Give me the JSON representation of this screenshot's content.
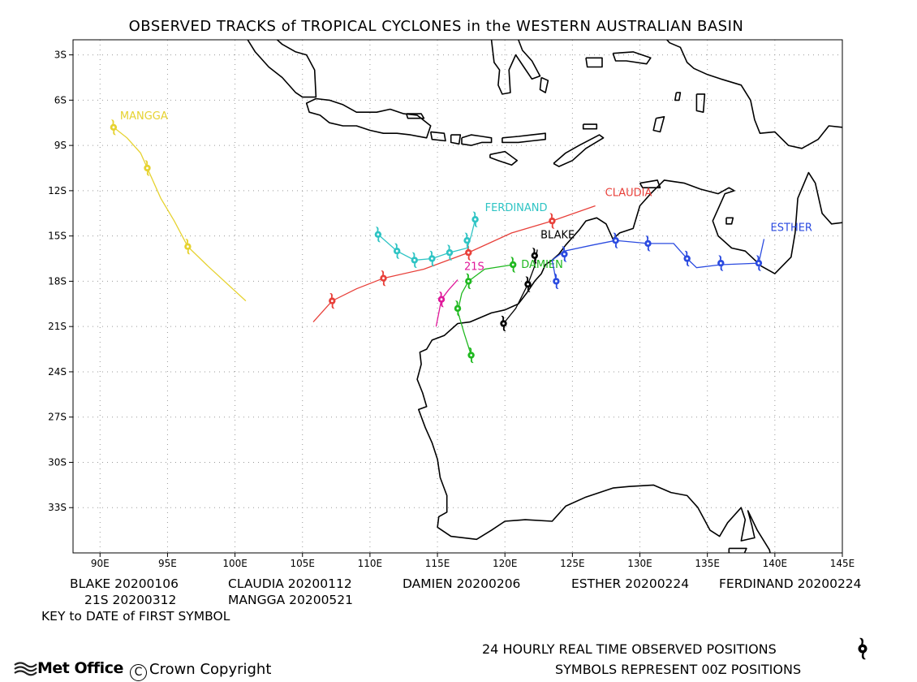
{
  "title": "OBSERVED TRACKS of TROPICAL CYCLONES in the WESTERN AUSTRALIAN BASIN",
  "map": {
    "lon_range": [
      88,
      145
    ],
    "lat_range": [
      -36,
      -2
    ],
    "x_ticks": [
      "90E",
      "95E",
      "100E",
      "105E",
      "110E",
      "115E",
      "120E",
      "125E",
      "130E",
      "135E",
      "140E",
      "145E"
    ],
    "y_ticks": [
      "3S",
      "6S",
      "9S",
      "12S",
      "15S",
      "18S",
      "21S",
      "24S",
      "27S",
      "30S",
      "33S"
    ],
    "grid": "dotted"
  },
  "tracks": [
    {
      "name": "MANGGA",
      "color": "#e6d230",
      "points": [
        [
          91.0,
          -7.8
        ],
        [
          92.0,
          -8.5
        ],
        [
          93.0,
          -9.5
        ],
        [
          93.5,
          -10.5
        ],
        [
          94.5,
          -12.5
        ],
        [
          95.5,
          -14.0
        ],
        [
          96.5,
          -15.7
        ],
        [
          98.0,
          -17.0
        ],
        [
          100.8,
          -19.3
        ]
      ],
      "symbols": [
        [
          91.0,
          -7.8
        ],
        [
          93.5,
          -10.5
        ],
        [
          96.5,
          -15.7
        ]
      ]
    },
    {
      "name": "CLAUDIA",
      "color": "#e8403a",
      "points": [
        [
          105.8,
          -20.7
        ],
        [
          107.2,
          -19.3
        ],
        [
          109.0,
          -18.5
        ],
        [
          111.0,
          -17.8
        ],
        [
          114.0,
          -17.2
        ],
        [
          117.3,
          -16.1
        ],
        [
          120.5,
          -14.8
        ],
        [
          123.5,
          -14.0
        ],
        [
          126.7,
          -13.0
        ]
      ],
      "symbols": [
        [
          107.2,
          -19.3
        ],
        [
          111.0,
          -17.8
        ],
        [
          117.3,
          -16.1
        ],
        [
          123.5,
          -14.0
        ]
      ]
    },
    {
      "name": "FERDINAND",
      "color": "#2ec4c4",
      "points": [
        [
          117.8,
          -13.9
        ],
        [
          117.5,
          -15.0
        ],
        [
          117.2,
          -15.8
        ],
        [
          115.9,
          -16.1
        ],
        [
          114.6,
          -16.5
        ],
        [
          113.3,
          -16.6
        ],
        [
          112.0,
          -16.0
        ],
        [
          110.6,
          -14.9
        ]
      ],
      "symbols": [
        [
          117.8,
          -13.9
        ],
        [
          117.2,
          -15.3
        ],
        [
          115.9,
          -16.1
        ],
        [
          114.6,
          -16.5
        ],
        [
          113.3,
          -16.6
        ],
        [
          112.0,
          -16.0
        ],
        [
          110.6,
          -14.9
        ]
      ]
    },
    {
      "name": "BLAKE",
      "color": "#000000",
      "points": [
        [
          122.4,
          -15.9
        ],
        [
          122.2,
          -17.0
        ],
        [
          121.7,
          -18.2
        ],
        [
          120.8,
          -19.8
        ],
        [
          119.9,
          -20.8
        ]
      ],
      "symbols": [
        [
          122.2,
          -16.3
        ],
        [
          121.7,
          -18.2
        ],
        [
          119.9,
          -20.8
        ]
      ]
    },
    {
      "name": "DAMIEN",
      "color": "#1fb81f",
      "points": [
        [
          120.6,
          -16.9
        ],
        [
          118.5,
          -17.2
        ],
        [
          117.3,
          -18.0
        ],
        [
          116.8,
          -18.8
        ],
        [
          116.5,
          -20.0
        ],
        [
          117.0,
          -21.5
        ],
        [
          117.5,
          -22.9
        ]
      ],
      "symbols": [
        [
          120.6,
          -16.9
        ],
        [
          117.3,
          -18.0
        ],
        [
          116.5,
          -19.8
        ],
        [
          117.5,
          -22.9
        ]
      ]
    },
    {
      "name": "21S",
      "color": "#e0189a",
      "points": [
        [
          116.5,
          -17.9
        ],
        [
          115.8,
          -18.6
        ],
        [
          115.3,
          -19.2
        ],
        [
          114.9,
          -21.0
        ]
      ],
      "symbols": [
        [
          115.3,
          -19.2
        ]
      ]
    },
    {
      "name": "ESTHER",
      "color": "#2b4be0",
      "points": [
        [
          139.2,
          -15.2
        ],
        [
          138.8,
          -16.8
        ],
        [
          136.0,
          -16.9
        ],
        [
          134.2,
          -17.1
        ],
        [
          133.5,
          -16.5
        ],
        [
          132.5,
          -15.5
        ],
        [
          130.6,
          -15.5
        ],
        [
          128.2,
          -15.3
        ],
        [
          126.5,
          -15.6
        ],
        [
          124.4,
          -16.0
        ],
        [
          123.5,
          -16.6
        ],
        [
          123.8,
          -18.0
        ]
      ],
      "symbols": [
        [
          138.8,
          -16.8
        ],
        [
          136.0,
          -16.8
        ],
        [
          133.5,
          -16.5
        ],
        [
          130.6,
          -15.5
        ],
        [
          128.2,
          -15.3
        ],
        [
          124.4,
          -16.2
        ],
        [
          123.8,
          -18.0
        ]
      ]
    }
  ],
  "legend_row1": [
    "BLAKE 20200106",
    "CLAUDIA 20200112",
    "DAMIEN 20200206",
    "ESTHER 20200224",
    "FERDINAND 20200224"
  ],
  "legend_row2": [
    "21S 20200312",
    "MANGGA 20200521"
  ],
  "key_text": "KEY to DATE of FIRST SYMBOL",
  "footer_line1": "24 HOURLY REAL TIME OBSERVED POSITIONS",
  "footer_line2": "SYMBOLS REPRESENT 00Z POSITIONS",
  "brand": "Met Office",
  "copyright": "Crown Copyright"
}
